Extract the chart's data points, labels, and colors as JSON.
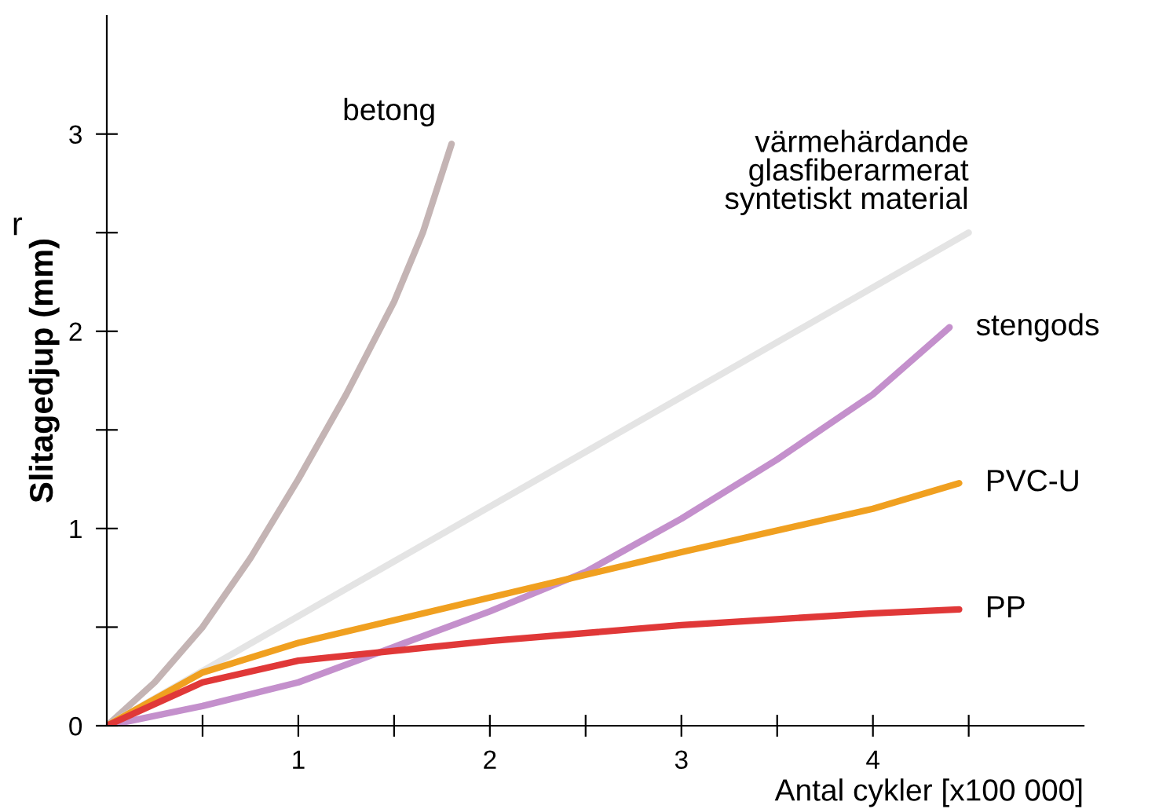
{
  "chart_data": {
    "type": "line",
    "xlabel": "Antal cykler [x100 000]",
    "ylabel": "Slitagedjup (mm)",
    "xlim": [
      0,
      5.1
    ],
    "ylim": [
      0,
      3.6
    ],
    "xticks": [
      {
        "value": 0.5,
        "label": null
      },
      1,
      {
        "value": 1.5,
        "label": null
      },
      2,
      {
        "value": 2.5,
        "label": null
      },
      3,
      {
        "value": 3.5,
        "label": null
      },
      4,
      {
        "value": 4.5,
        "label": null
      }
    ],
    "yticks": [
      0,
      {
        "value": 0.5,
        "label": null
      },
      1,
      {
        "value": 1.5,
        "label": null
      },
      2,
      {
        "value": 2.5,
        "label": null
      },
      3
    ],
    "grid": false,
    "marker": "none",
    "line_style": "solid",
    "series": [
      {
        "name": "betong",
        "color": "#c4b4b4",
        "x": [
          0,
          0.25,
          0.5,
          0.75,
          1,
          1.25,
          1.5,
          1.65,
          1.8
        ],
        "values": [
          0,
          0.22,
          0.5,
          0.85,
          1.25,
          1.68,
          2.15,
          2.5,
          2.95
        ]
      },
      {
        "name": "värmehärdande\nglasfiberarmerat\nsyntetiskt material",
        "color": "#e4e4e4",
        "x": [
          0,
          4.5
        ],
        "values": [
          0,
          2.5
        ]
      },
      {
        "name": "stengods",
        "color": "#c490cc",
        "x": [
          0,
          0.5,
          1,
          1.5,
          2,
          2.5,
          3,
          3.5,
          4,
          4.4
        ],
        "values": [
          0,
          0.1,
          0.22,
          0.4,
          0.58,
          0.78,
          1.05,
          1.35,
          1.68,
          2.02
        ]
      },
      {
        "name": "PVC-U",
        "color": "#f0a020",
        "x": [
          0,
          0.5,
          1,
          2,
          3,
          4,
          4.45
        ],
        "values": [
          0,
          0.27,
          0.42,
          0.65,
          0.88,
          1.1,
          1.23
        ]
      },
      {
        "name": "PP",
        "color": "#e03838",
        "x": [
          0,
          0.5,
          1,
          1.5,
          2,
          3,
          4,
          4.45
        ],
        "values": [
          0,
          0.22,
          0.33,
          0.38,
          0.43,
          0.51,
          0.57,
          0.59
        ]
      }
    ],
    "annotations": [
      "r"
    ]
  }
}
